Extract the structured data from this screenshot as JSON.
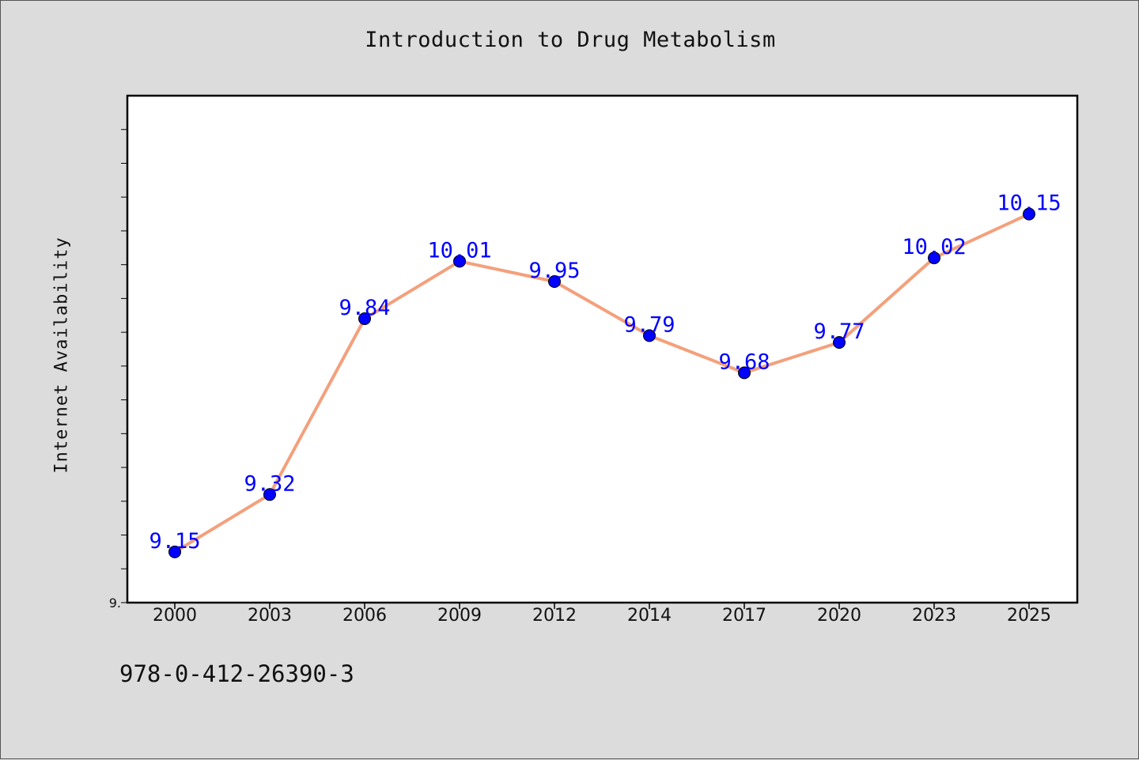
{
  "chart_data": {
    "type": "line",
    "title": "Introduction to Drug Metabolism",
    "ylabel": "Internet Availability",
    "xlabel": "",
    "categories": [
      "2000",
      "2003",
      "2006",
      "2009",
      "2012",
      "2014",
      "2017",
      "2020",
      "2023",
      "2025"
    ],
    "series": [
      {
        "values": [
          9.15,
          9.32,
          9.84,
          10.01,
          9.95,
          9.79,
          9.68,
          9.77,
          10.02,
          10.15
        ]
      }
    ],
    "data_labels": [
      "9.15",
      "9.32",
      "9.84",
      "10.01",
      "9.95",
      "9.79",
      "9.68",
      "9.77",
      "10.02",
      "10.15"
    ],
    "ylim": [
      9.0,
      10.5
    ],
    "y_tick_labels": [
      "9."
    ],
    "grid": false,
    "legend": "none",
    "colors": {
      "line": "#f4a07c",
      "marker": "#0000ff",
      "data_label": "#0000ff",
      "plot_background": "#ffffff",
      "figure_background": "#dcdcdc"
    }
  },
  "footnote": "978-0-412-26390-3"
}
